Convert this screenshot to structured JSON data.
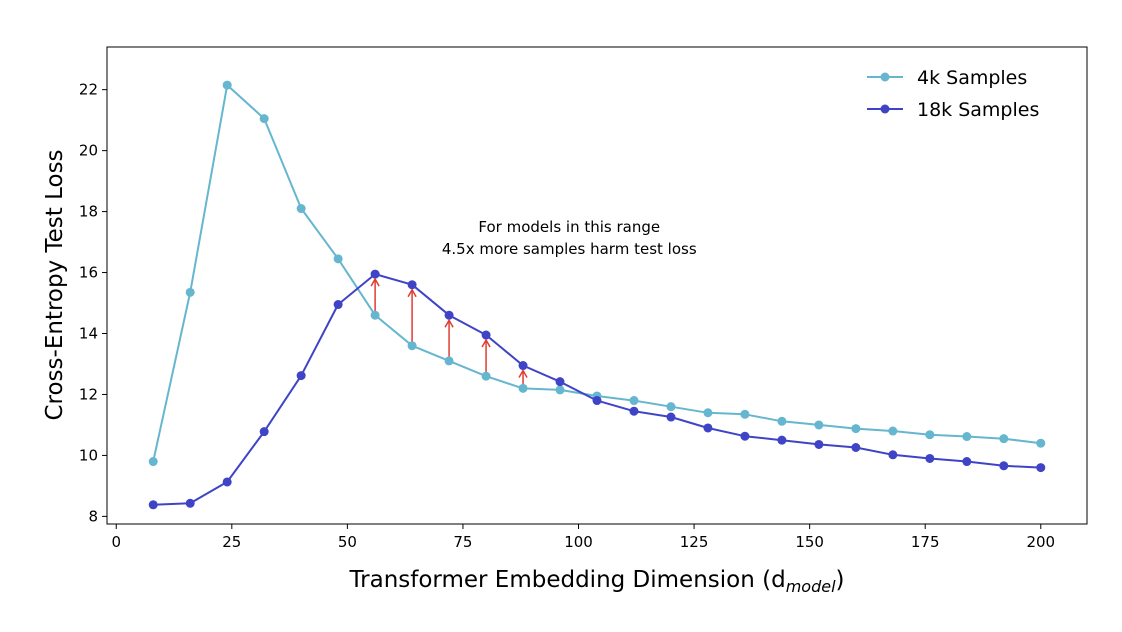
{
  "chart_data": {
    "type": "line",
    "xlabel": "Transformer Embedding Dimension (d",
    "xlabel_subscript": "model",
    "xlabel_suffix": ")",
    "ylabel": "Cross-Entropy Test Loss",
    "xlim": [
      -2,
      210
    ],
    "ylim": [
      7.75,
      23.4
    ],
    "xticks": [
      0,
      25,
      50,
      75,
      100,
      125,
      150,
      175,
      200
    ],
    "yticks": [
      8,
      10,
      12,
      14,
      16,
      18,
      20,
      22
    ],
    "x": [
      8,
      16,
      24,
      32,
      40,
      48,
      56,
      64,
      72,
      80,
      88,
      96,
      104,
      112,
      120,
      128,
      136,
      144,
      152,
      160,
      168,
      176,
      184,
      192,
      200
    ],
    "series": [
      {
        "name": "4k Samples",
        "color": "#66b6cf",
        "values": [
          9.8,
          15.35,
          22.15,
          21.05,
          18.1,
          16.45,
          14.6,
          13.6,
          13.1,
          12.6,
          12.2,
          12.15,
          11.95,
          11.8,
          11.6,
          11.4,
          11.35,
          11.12,
          11.0,
          10.88,
          10.8,
          10.68,
          10.62,
          10.55,
          10.4
        ]
      },
      {
        "name": "18k Samples",
        "color": "#3f44c6",
        "values": [
          8.38,
          8.43,
          9.13,
          10.78,
          12.62,
          14.95,
          15.95,
          15.6,
          14.6,
          13.95,
          12.95,
          12.42,
          11.8,
          11.45,
          11.26,
          10.9,
          10.63,
          10.5,
          10.36,
          10.26,
          10.02,
          9.9,
          9.8,
          9.66,
          9.6
        ]
      }
    ],
    "arrows": {
      "color": "#e03c32",
      "x": [
        56,
        64,
        72,
        80,
        88
      ]
    },
    "annotation": {
      "line1": "For models in this range",
      "line2": "4.5x more samples harm test loss",
      "anchor_x": 98,
      "anchor_y": 16.8
    },
    "legend": {
      "placement": "top-right",
      "entries": [
        "4k Samples",
        "18k Samples"
      ]
    }
  }
}
